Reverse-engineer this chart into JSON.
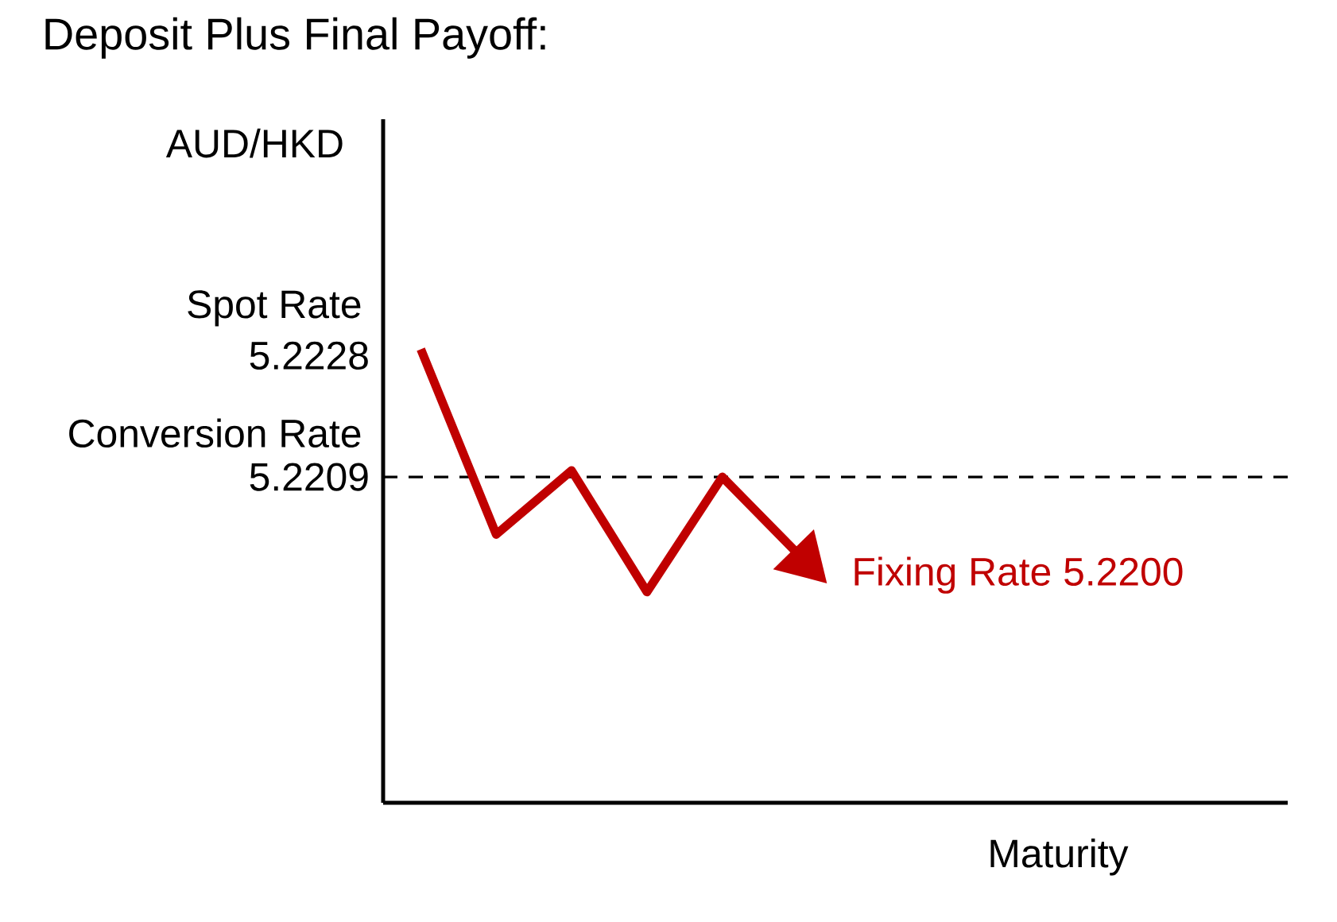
{
  "chart_data": {
    "type": "line",
    "title": "Deposit Plus Final Payoff:",
    "xlabel": "Maturity",
    "ylabel": "AUD/HKD",
    "categories": [
      null,
      null,
      null,
      null,
      null,
      null,
      null,
      null,
      null,
      null,
      null,
      null
    ],
    "series": [
      {
        "color": "#c00000",
        "values": [
          5.2229,
          5.22,
          5.221,
          5.2191,
          5.2209,
          5.2197,
          null,
          null,
          null,
          null,
          null,
          null
        ]
      }
    ],
    "ylim": [
      5.2158,
      5.2265
    ],
    "yticks": [
      5.2228,
      5.2209
    ],
    "ref_lines": [
      {
        "axis": "y",
        "value": 5.2209,
        "color": "#000000",
        "line_style": "dashed"
      }
    ],
    "annotations": [
      "Spot Rate",
      "Conversion Rate",
      "Fixing Rate 5.2200"
    ],
    "grid": false,
    "marker": "none",
    "line_style": "solid"
  }
}
